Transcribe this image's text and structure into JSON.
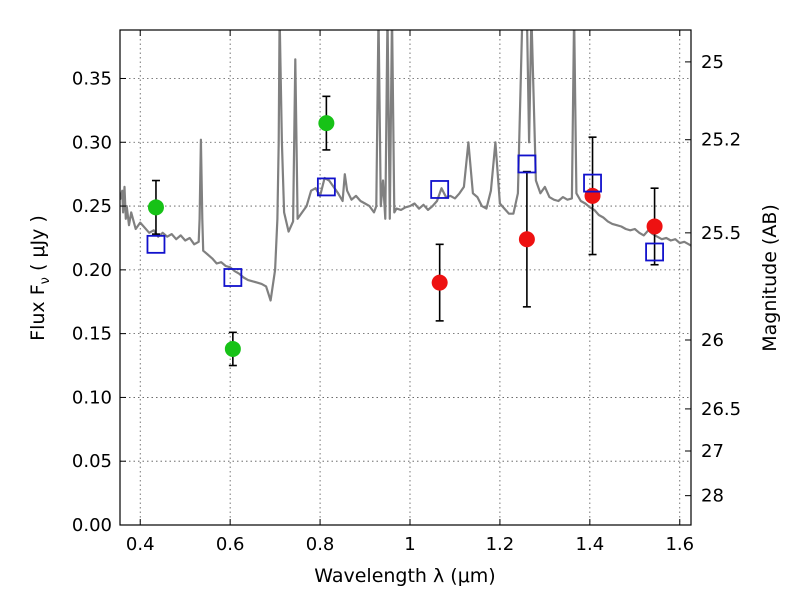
{
  "chart_data": {
    "type": "scatter",
    "xlabel": "Wavelength  λ (μm)",
    "ylabel": "Flux  F",
    "ylabel_sub": "ν",
    "ylabel_unit": "  ( μJy )",
    "y2label": "Magnitude (AB)",
    "xlim": [
      0.355,
      1.625
    ],
    "ylim": [
      0.0,
      0.388
    ],
    "grid": true,
    "x_ticks": [
      0.4,
      0.6,
      0.8,
      1.0,
      1.2,
      1.4,
      1.6
    ],
    "x_tick_labels": [
      "0.4",
      "0.6",
      "0.8",
      "1",
      "1.2",
      "1.4",
      "1.6"
    ],
    "y_ticks": [
      0.0,
      0.05,
      0.1,
      0.15,
      0.2,
      0.25,
      0.3,
      0.35
    ],
    "y_tick_labels": [
      "0.00",
      "0.05",
      "0.10",
      "0.15",
      "0.20",
      "0.25",
      "0.30",
      "0.35"
    ],
    "y2_ticks": [
      {
        "label": "25",
        "flux": 0.363
      },
      {
        "label": "25.2",
        "flux": 0.302
      },
      {
        "label": "25.5",
        "flux": 0.229
      },
      {
        "label": "26",
        "flux": 0.145
      },
      {
        "label": "26.5",
        "flux": 0.091
      },
      {
        "label": "27",
        "flux": 0.058
      },
      {
        "label": "28",
        "flux": 0.023
      }
    ],
    "series": [
      {
        "marker": "circle",
        "color": "#17c217",
        "points": [
          {
            "x": 0.435,
            "y": 0.249,
            "err": 0.021
          },
          {
            "x": 0.606,
            "y": 0.138,
            "err": 0.013
          },
          {
            "x": 0.814,
            "y": 0.315,
            "err": 0.021
          }
        ]
      },
      {
        "marker": "circle",
        "color": "#ee1111",
        "points": [
          {
            "x": 1.066,
            "y": 0.19,
            "err": 0.03
          },
          {
            "x": 1.26,
            "y": 0.224,
            "err": 0.053
          },
          {
            "x": 1.406,
            "y": 0.258,
            "err": 0.046
          },
          {
            "x": 1.544,
            "y": 0.234,
            "err": 0.03
          }
        ]
      },
      {
        "marker": "square",
        "color": "#1111cc",
        "points": [
          {
            "x": 0.435,
            "y": 0.22
          },
          {
            "x": 0.606,
            "y": 0.194
          },
          {
            "x": 0.814,
            "y": 0.265
          },
          {
            "x": 1.066,
            "y": 0.263
          },
          {
            "x": 1.26,
            "y": 0.283
          },
          {
            "x": 1.406,
            "y": 0.268
          },
          {
            "x": 1.544,
            "y": 0.214
          }
        ]
      }
    ],
    "spectrum": {
      "color": "#808080",
      "x": [
        0.355,
        0.36,
        0.362,
        0.365,
        0.368,
        0.37,
        0.375,
        0.38,
        0.39,
        0.4,
        0.41,
        0.42,
        0.43,
        0.44,
        0.45,
        0.46,
        0.47,
        0.48,
        0.49,
        0.5,
        0.51,
        0.52,
        0.53,
        0.532,
        0.535,
        0.538,
        0.54,
        0.55,
        0.56,
        0.57,
        0.58,
        0.59,
        0.6,
        0.61,
        0.62,
        0.63,
        0.64,
        0.65,
        0.66,
        0.67,
        0.68,
        0.69,
        0.7,
        0.705,
        0.708,
        0.71,
        0.712,
        0.715,
        0.72,
        0.73,
        0.74,
        0.745,
        0.75,
        0.76,
        0.77,
        0.78,
        0.79,
        0.8,
        0.81,
        0.82,
        0.83,
        0.84,
        0.85,
        0.855,
        0.86,
        0.87,
        0.88,
        0.89,
        0.9,
        0.91,
        0.92,
        0.925,
        0.93,
        0.935,
        0.94,
        0.945,
        0.95,
        0.955,
        0.96,
        0.965,
        0.97,
        0.98,
        0.99,
        1.0,
        1.01,
        1.02,
        1.03,
        1.04,
        1.05,
        1.06,
        1.07,
        1.08,
        1.09,
        1.1,
        1.11,
        1.12,
        1.13,
        1.14,
        1.15,
        1.16,
        1.17,
        1.18,
        1.19,
        1.2,
        1.21,
        1.22,
        1.23,
        1.24,
        1.25,
        1.26,
        1.265,
        1.27,
        1.28,
        1.29,
        1.3,
        1.31,
        1.32,
        1.33,
        1.34,
        1.35,
        1.36,
        1.365,
        1.37,
        1.38,
        1.39,
        1.4,
        1.41,
        1.42,
        1.43,
        1.44,
        1.45,
        1.46,
        1.47,
        1.48,
        1.49,
        1.5,
        1.51,
        1.52,
        1.53,
        1.54,
        1.55,
        1.56,
        1.57,
        1.58,
        1.59,
        1.6,
        1.61,
        1.62,
        1.625
      ],
      "y": [
        0.255,
        0.262,
        0.245,
        0.265,
        0.24,
        0.25,
        0.235,
        0.245,
        0.232,
        0.237,
        0.233,
        0.229,
        0.231,
        0.226,
        0.229,
        0.226,
        0.228,
        0.224,
        0.227,
        0.223,
        0.225,
        0.22,
        0.222,
        0.24,
        0.302,
        0.24,
        0.215,
        0.212,
        0.209,
        0.205,
        0.206,
        0.203,
        0.202,
        0.199,
        0.197,
        0.194,
        0.192,
        0.191,
        0.19,
        0.189,
        0.187,
        0.176,
        0.2,
        0.24,
        0.3,
        0.4,
        0.36,
        0.3,
        0.245,
        0.23,
        0.238,
        0.365,
        0.24,
        0.245,
        0.25,
        0.262,
        0.264,
        0.258,
        0.272,
        0.27,
        0.265,
        0.26,
        0.254,
        0.275,
        0.262,
        0.255,
        0.258,
        0.254,
        0.252,
        0.25,
        0.245,
        0.25,
        0.4,
        0.25,
        0.27,
        0.24,
        0.4,
        0.24,
        0.4,
        0.245,
        0.248,
        0.247,
        0.249,
        0.25,
        0.252,
        0.248,
        0.251,
        0.247,
        0.25,
        0.254,
        0.264,
        0.257,
        0.258,
        0.256,
        0.26,
        0.265,
        0.3,
        0.26,
        0.257,
        0.25,
        0.248,
        0.262,
        0.3,
        0.252,
        0.248,
        0.244,
        0.244,
        0.26,
        0.4,
        0.4,
        0.3,
        0.4,
        0.27,
        0.26,
        0.265,
        0.257,
        0.255,
        0.254,
        0.257,
        0.255,
        0.256,
        0.4,
        0.26,
        0.254,
        0.252,
        0.249,
        0.247,
        0.243,
        0.241,
        0.238,
        0.236,
        0.235,
        0.234,
        0.232,
        0.231,
        0.232,
        0.229,
        0.227,
        0.231,
        0.228,
        0.226,
        0.224,
        0.225,
        0.223,
        0.224,
        0.221,
        0.222,
        0.22,
        0.219
      ]
    }
  }
}
